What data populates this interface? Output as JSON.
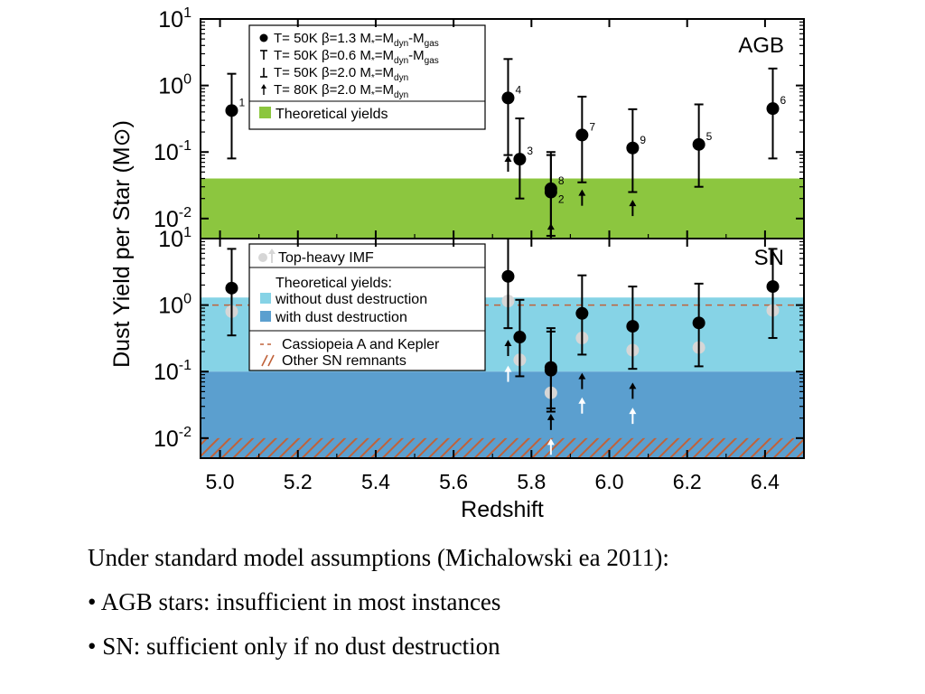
{
  "chart_data": [
    {
      "type": "scatter",
      "panel_label": "AGB",
      "ylabel": "Dust Yield per Star (M⊙)",
      "yscale": "log",
      "ylim": [
        0.005,
        10
      ],
      "xlim": [
        4.95,
        6.5
      ],
      "y_ticks": [
        {
          "mant": "10",
          "exp": "1",
          "v": 10
        },
        {
          "mant": "10",
          "exp": "0",
          "v": 1
        },
        {
          "mant": "10",
          "exp": "-1",
          "v": 0.1
        },
        {
          "mant": "10",
          "exp": "-2",
          "v": 0.01
        }
      ],
      "band": {
        "name": "Theoretical yields",
        "ymin": 0.005,
        "ymax": 0.04,
        "color": "#8cc63f"
      },
      "legend": [
        {
          "sym": "dot",
          "pre": "T= 50K β=1.3 M",
          "sub1": "*",
          "mid": "=M",
          "sub2": "dyn",
          "mid2": "-M",
          "sub3": "gas"
        },
        {
          "sym": "tbar",
          "pre": "T= 50K β=0.6 M",
          "sub1": "*",
          "mid": "=M",
          "sub2": "dyn",
          "mid2": "-M",
          "sub3": "gas"
        },
        {
          "sym": "bbar",
          "pre": "T= 50K β=2.0 M",
          "sub1": "*",
          "mid": "=M",
          "sub2": "dyn",
          "mid2": "",
          "sub3": ""
        },
        {
          "sym": "arrow",
          "pre": "T= 80K β=2.0 M",
          "sub1": "*",
          "mid": "=M",
          "sub2": "dyn",
          "mid2": "",
          "sub3": ""
        }
      ],
      "points": [
        {
          "label": "1",
          "x": 5.03,
          "y": 0.42,
          "ylo": 0.08,
          "yhi": 1.5
        },
        {
          "label": "4",
          "x": 5.74,
          "y": 0.65,
          "ylo": 0.09,
          "yhi": 2.5
        },
        {
          "label": "3",
          "x": 5.77,
          "y": 0.078,
          "ylo": 0.02,
          "yhi": 0.32
        },
        {
          "label": "8",
          "x": 5.85,
          "y": 0.028,
          "ylo": 0.0055,
          "yhi": 0.1
        },
        {
          "label": "2",
          "x": 5.85,
          "y": 0.025,
          "ylo": 0.005,
          "yhi": 0.09
        },
        {
          "label": "7",
          "x": 5.93,
          "y": 0.18,
          "ylo": 0.035,
          "yhi": 0.68
        },
        {
          "label": "9",
          "x": 6.06,
          "y": 0.115,
          "ylo": 0.025,
          "yhi": 0.44
        },
        {
          "label": "5",
          "x": 6.23,
          "y": 0.13,
          "ylo": 0.03,
          "yhi": 0.52
        },
        {
          "label": "6",
          "x": 6.42,
          "y": 0.45,
          "ylo": 0.08,
          "yhi": 1.8
        }
      ],
      "arrows": [
        {
          "x": 5.74,
          "y": 0.065,
          "color": "#000000"
        },
        {
          "x": 5.85,
          "y": 0.0062,
          "color": "#000000"
        },
        {
          "x": 5.93,
          "y": 0.02,
          "color": "#000000"
        },
        {
          "x": 6.06,
          "y": 0.014,
          "color": "#000000"
        }
      ]
    },
    {
      "type": "scatter",
      "panel_label": "SN",
      "xlabel": "Redshift",
      "yscale": "log",
      "ylim": [
        0.005,
        10
      ],
      "xlim": [
        4.95,
        6.5
      ],
      "x_ticks": [
        "5.0",
        "5.2",
        "5.4",
        "5.6",
        "5.8",
        "6.0",
        "6.2",
        "6.4"
      ],
      "y_ticks": [
        {
          "mant": "10",
          "exp": "1",
          "v": 10
        },
        {
          "mant": "10",
          "exp": "0",
          "v": 1
        },
        {
          "mant": "10",
          "exp": "-1",
          "v": 0.1
        },
        {
          "mant": "10",
          "exp": "-2",
          "v": 0.01
        }
      ],
      "bands": [
        {
          "name": "without dust destruction",
          "ymin": 0.1,
          "ymax": 1.3,
          "color": "#86d3e6"
        },
        {
          "name": "with dust destruction",
          "ymin": 0.005,
          "ymax": 0.1,
          "color": "#5b9fcf"
        }
      ],
      "hatch": {
        "name": "Other SN remnants",
        "ymin": 0.005,
        "ymax": 0.01,
        "color": "#c0623a"
      },
      "ref_line": {
        "name": "Cassiopeia A and Kepler",
        "y": 1.0,
        "color": "#c0623a"
      },
      "legend": {
        "imf": "Top-heavy IMF",
        "theory_title": "Theoretical yields:",
        "without": "without dust destruction",
        "with": "with dust destruction",
        "cas": "Cassiopeia A and Kepler",
        "other": "Other SN remnants"
      },
      "points": [
        {
          "x": 5.03,
          "y": 1.8,
          "ylo": 0.35,
          "yhi": 7.0
        },
        {
          "x": 5.74,
          "y": 2.7,
          "ylo": 0.45,
          "yhi": 10.0
        },
        {
          "x": 5.77,
          "y": 0.33,
          "ylo": 0.085,
          "yhi": 1.2
        },
        {
          "x": 5.85,
          "y": 0.115,
          "ylo": 0.028,
          "yhi": 0.45
        },
        {
          "x": 5.85,
          "y": 0.105,
          "ylo": 0.025,
          "yhi": 0.4
        },
        {
          "x": 5.93,
          "y": 0.75,
          "ylo": 0.18,
          "yhi": 2.8
        },
        {
          "x": 6.06,
          "y": 0.48,
          "ylo": 0.11,
          "yhi": 1.9
        },
        {
          "x": 6.23,
          "y": 0.54,
          "ylo": 0.12,
          "yhi": 2.1
        },
        {
          "x": 6.42,
          "y": 1.9,
          "ylo": 0.32,
          "yhi": 7.0
        }
      ],
      "imf_points": [
        {
          "x": 5.03,
          "y": 0.8
        },
        {
          "x": 5.74,
          "y": 1.15
        },
        {
          "x": 5.77,
          "y": 0.15
        },
        {
          "x": 5.85,
          "y": 0.048
        },
        {
          "x": 5.93,
          "y": 0.32
        },
        {
          "x": 6.06,
          "y": 0.21
        },
        {
          "x": 6.23,
          "y": 0.23
        },
        {
          "x": 6.42,
          "y": 0.83
        }
      ],
      "arrows": [
        {
          "x": 5.74,
          "y": 0.22,
          "color": "#000000"
        },
        {
          "x": 5.85,
          "y": 0.017,
          "color": "#000000"
        },
        {
          "x": 5.93,
          "y": 0.07,
          "color": "#000000"
        },
        {
          "x": 6.06,
          "y": 0.05,
          "color": "#000000"
        },
        {
          "x": 5.74,
          "y": 0.09,
          "color": "#ffffff"
        },
        {
          "x": 5.85,
          "y": 0.0072,
          "color": "#ffffff"
        },
        {
          "x": 5.93,
          "y": 0.03,
          "color": "#ffffff"
        },
        {
          "x": 6.06,
          "y": 0.021,
          "color": "#ffffff"
        }
      ]
    }
  ],
  "caption": {
    "intro": "Under standard model assumptions (Michalowski ea 2011):",
    "bullet1": "• AGB stars: insufficient in most instances",
    "bullet2": "• SN: sufficient only if no dust destruction"
  }
}
